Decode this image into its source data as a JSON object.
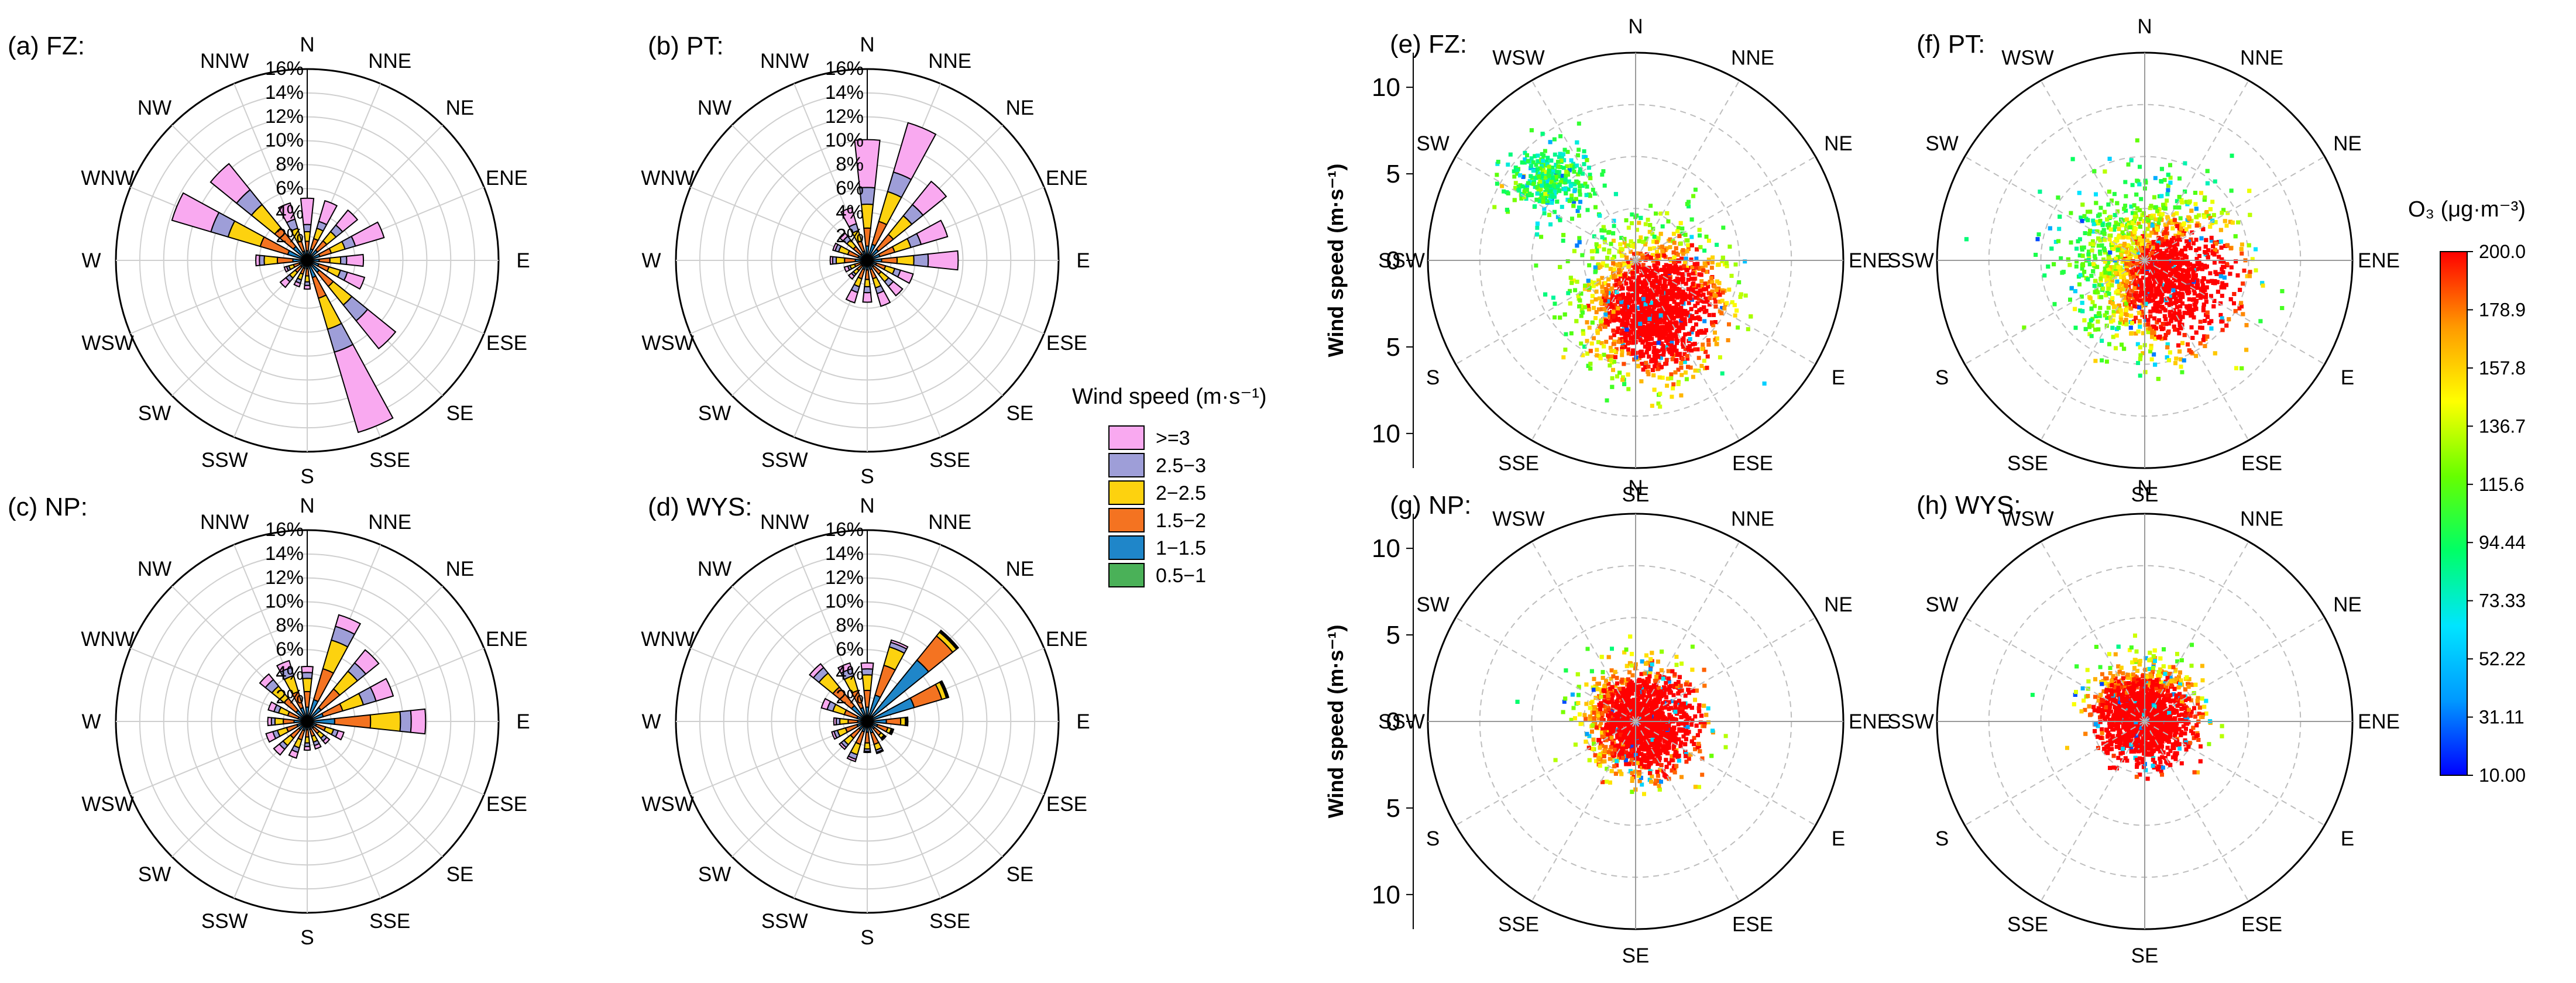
{
  "chart_data": [
    {
      "type": "windrose",
      "panel": "(a) FZ:",
      "directions": [
        "N",
        "NNE",
        "NE",
        "ENE",
        "E",
        "ESE",
        "SE",
        "SSE",
        "S",
        "SSW",
        "SW",
        "WSW",
        "W",
        "WNW",
        "NW",
        "NNW"
      ],
      "radial_ticks": [
        "2%",
        "4%",
        "6%",
        "8%",
        "10%",
        "12%",
        "14%",
        "16%"
      ],
      "rmax": 16,
      "bins": [
        "0.5−1",
        "1−1.5",
        "1.5−2",
        "2−2.5",
        "2.5−3",
        ">=3"
      ],
      "frequency": [
        [
          0.2,
          0.6,
          0.8,
          0.8,
          0.6,
          2.2
        ],
        [
          0.3,
          0.7,
          0.9,
          0.9,
          0.6,
          1.8
        ],
        [
          0.3,
          0.8,
          1.0,
          1.0,
          0.7,
          1.6
        ],
        [
          0.3,
          0.8,
          1.0,
          1.2,
          0.9,
          2.5
        ],
        [
          0.3,
          0.7,
          0.9,
          0.9,
          0.5,
          1.4
        ],
        [
          0.3,
          0.7,
          0.9,
          1.0,
          0.6,
          1.5
        ],
        [
          0.3,
          1.0,
          1.5,
          2.0,
          1.7,
          3.0
        ],
        [
          0.3,
          1.2,
          1.8,
          2.7,
          2.0,
          7.0
        ],
        [
          0.2,
          0.5,
          0.6,
          0.5,
          0.3,
          0.3
        ],
        [
          0.2,
          0.5,
          0.5,
          0.5,
          0.3,
          0.3
        ],
        [
          0.2,
          0.5,
          0.6,
          0.6,
          0.4,
          0.6
        ],
        [
          0.2,
          0.5,
          0.5,
          0.4,
          0.2,
          0.2
        ],
        [
          0.3,
          0.9,
          1.3,
          1.1,
          0.4,
          0.3
        ],
        [
          0.3,
          1.4,
          2.4,
          2.8,
          1.5,
          3.4
        ],
        [
          0.3,
          1.2,
          2.0,
          2.5,
          1.6,
          2.8
        ],
        [
          0.2,
          0.6,
          0.9,
          1.1,
          0.8,
          1.4
        ]
      ]
    },
    {
      "type": "windrose",
      "panel": "(b) PT:",
      "directions": [
        "N",
        "NNE",
        "NE",
        "ENE",
        "E",
        "ESE",
        "SE",
        "SSE",
        "S",
        "SSW",
        "SW",
        "WSW",
        "W",
        "WNW",
        "NW",
        "NNW"
      ],
      "radial_ticks": [
        "2%",
        "4%",
        "6%",
        "8%",
        "10%",
        "12%",
        "14%",
        "16%"
      ],
      "rmax": 16,
      "bins": [
        "0.5−1",
        "1−1.5",
        "1.5−2",
        "2−2.5",
        "2.5−3",
        ">=3"
      ],
      "frequency": [
        [
          0.3,
          0.9,
          1.5,
          2.0,
          1.4,
          4.0
        ],
        [
          0.3,
          1.1,
          2.0,
          2.6,
          1.7,
          4.3
        ],
        [
          0.3,
          0.9,
          1.6,
          2.0,
          1.2,
          2.5
        ],
        [
          0.3,
          0.8,
          1.3,
          1.4,
          0.9,
          2.3
        ],
        [
          0.3,
          0.9,
          1.3,
          1.4,
          1.2,
          2.5
        ],
        [
          0.2,
          0.6,
          0.8,
          0.8,
          0.5,
          1.1
        ],
        [
          0.2,
          0.5,
          0.8,
          0.8,
          0.5,
          1.0
        ],
        [
          0.2,
          0.6,
          0.8,
          0.8,
          0.5,
          1.1
        ],
        [
          0.2,
          0.6,
          0.8,
          0.6,
          0.5,
          0.8
        ],
        [
          0.2,
          0.6,
          0.8,
          0.7,
          0.5,
          0.9
        ],
        [
          0.2,
          0.4,
          0.5,
          0.4,
          0.2,
          0.3
        ],
        [
          0.2,
          0.4,
          0.5,
          0.4,
          0.2,
          0.3
        ],
        [
          0.3,
          0.7,
          0.9,
          0.7,
          0.3,
          0.2
        ],
        [
          0.2,
          0.6,
          0.9,
          0.8,
          0.3,
          0.2
        ],
        [
          0.2,
          0.5,
          0.8,
          0.7,
          0.4,
          0.4
        ],
        [
          0.2,
          0.6,
          0.9,
          0.9,
          0.6,
          1.4
        ]
      ]
    },
    {
      "type": "windrose",
      "panel": "(c) NP:",
      "directions": [
        "N",
        "NNE",
        "NE",
        "ENE",
        "E",
        "ESE",
        "SE",
        "SSE",
        "S",
        "SSW",
        "SW",
        "WSW",
        "W",
        "WNW",
        "NW",
        "NNW"
      ],
      "radial_ticks": [
        "2%",
        "4%",
        "6%",
        "8%",
        "10%",
        "12%",
        "14%",
        "16%"
      ],
      "rmax": 16,
      "bins": [
        "0.5−1",
        "1−1.5",
        "1.5−2",
        "2−2.5",
        "2.5−3",
        ">=3"
      ],
      "frequency": [
        [
          0.3,
          0.9,
          1.3,
          1.1,
          0.5,
          0.5
        ],
        [
          0.3,
          1.6,
          2.7,
          2.5,
          1.2,
          1.0
        ],
        [
          0.3,
          1.2,
          2.0,
          1.9,
          0.9,
          1.4
        ],
        [
          0.3,
          1.1,
          1.7,
          1.8,
          1.1,
          1.5
        ],
        [
          0.3,
          2.0,
          3.0,
          2.5,
          0.9,
          1.2
        ],
        [
          0.2,
          0.6,
          0.8,
          0.7,
          0.4,
          0.5
        ],
        [
          0.2,
          0.5,
          0.6,
          0.5,
          0.3,
          0.3
        ],
        [
          0.2,
          0.5,
          0.6,
          0.5,
          0.3,
          0.3
        ],
        [
          0.2,
          0.5,
          0.6,
          0.5,
          0.3,
          0.3
        ],
        [
          0.2,
          0.6,
          0.8,
          0.7,
          0.4,
          0.5
        ],
        [
          0.2,
          0.7,
          0.9,
          0.8,
          0.4,
          0.6
        ],
        [
          0.2,
          0.7,
          0.9,
          0.8,
          0.4,
          0.6
        ],
        [
          0.3,
          0.8,
          0.9,
          0.7,
          0.3,
          0.3
        ],
        [
          0.2,
          0.6,
          0.9,
          0.8,
          0.4,
          0.5
        ],
        [
          0.3,
          0.9,
          1.3,
          1.3,
          0.7,
          0.6
        ],
        [
          0.3,
          0.9,
          1.4,
          1.4,
          0.7,
          0.6
        ]
      ]
    },
    {
      "type": "windrose",
      "panel": "(d) WYS:",
      "directions": [
        "N",
        "NNE",
        "NE",
        "ENE",
        "E",
        "ESE",
        "SE",
        "SSE",
        "S",
        "SSW",
        "SW",
        "WSW",
        "W",
        "WNW",
        "NW",
        "NNW"
      ],
      "radial_ticks": [
        "2%",
        "4%",
        "6%",
        "8%",
        "10%",
        "12%",
        "14%",
        "16%"
      ],
      "rmax": 16,
      "bins": [
        "0.5−1",
        "1−1.5",
        "1.5−2",
        "2−2.5",
        "2.5−3",
        ">=3"
      ],
      "frequency": [
        [
          0.3,
          0.9,
          1.4,
          1.3,
          0.5,
          0.5
        ],
        [
          0.3,
          2.0,
          2.6,
          1.6,
          0.4,
          0.2
        ],
        [
          0.6,
          6.0,
          2.6,
          0.4,
          0.1,
          0.1
        ],
        [
          0.3,
          3.8,
          2.4,
          0.4,
          0.1,
          0.1
        ],
        [
          0.3,
          1.3,
          1.2,
          0.4,
          0.1,
          0.1
        ],
        [
          0.2,
          0.7,
          0.9,
          0.3,
          0.1,
          0.1
        ],
        [
          0.2,
          0.6,
          0.7,
          0.3,
          0.1,
          0.1
        ],
        [
          0.2,
          0.8,
          1.0,
          0.5,
          0.2,
          0.1
        ],
        [
          0.2,
          0.7,
          0.9,
          0.5,
          0.2,
          0.1
        ],
        [
          0.2,
          0.7,
          1.1,
          0.9,
          0.4,
          0.2
        ],
        [
          0.2,
          0.7,
          0.9,
          0.7,
          0.3,
          0.2
        ],
        [
          0.2,
          0.7,
          1.0,
          0.7,
          0.3,
          0.2
        ],
        [
          0.2,
          0.6,
          0.8,
          0.7,
          0.3,
          0.2
        ],
        [
          0.2,
          0.7,
          1.1,
          1.0,
          0.5,
          0.5
        ],
        [
          0.3,
          1.4,
          2.0,
          1.5,
          0.6,
          0.4
        ],
        [
          0.2,
          1.0,
          1.5,
          1.3,
          0.6,
          0.5
        ]
      ]
    },
    {
      "type": "scatter",
      "subtype": "polar-pollution-rose",
      "panel": "(e) FZ:",
      "ylabel": "Wind speed (m·s⁻¹)",
      "directions": [
        "N",
        "NNE",
        "NE",
        "ENE",
        "E",
        "ESE",
        "SE",
        "SSE",
        "S",
        "SSW",
        "SW",
        "WSW"
      ],
      "y_ticks": [
        "10",
        "5",
        "0",
        "5",
        "10"
      ],
      "rmax": 12,
      "density_center_u_v": [
        1.0,
        -2.5
      ],
      "spread": 4.5,
      "hotspot_u_v": [
        1.5,
        -3.0
      ],
      "max_concentration": 200
    },
    {
      "type": "scatter",
      "subtype": "polar-pollution-rose",
      "panel": "(f) PT:",
      "directions": [
        "N",
        "NNE",
        "NE",
        "ENE",
        "E",
        "ESE",
        "SE",
        "SSE",
        "S",
        "SSW",
        "SW",
        "WSW"
      ],
      "y_ticks": [],
      "rmax": 12,
      "density_center_u_v": [
        0.5,
        -0.5
      ],
      "spread": 5.0,
      "hotspot_u_v": [
        2.5,
        -1.5
      ],
      "max_concentration": 200
    },
    {
      "type": "scatter",
      "subtype": "polar-pollution-rose",
      "panel": "(g) NP:",
      "ylabel": "Wind speed (m·s⁻¹)",
      "directions": [
        "N",
        "NNE",
        "NE",
        "ENE",
        "E",
        "ESE",
        "SE",
        "SSE",
        "S",
        "SSW",
        "SW",
        "WSW"
      ],
      "y_ticks": [
        "10",
        "5",
        "0",
        "5",
        "10"
      ],
      "rmax": 12,
      "density_center_u_v": [
        0.3,
        0.0
      ],
      "spread": 3.3,
      "hotspot_u_v": [
        1.0,
        0.0
      ],
      "max_concentration": 180
    },
    {
      "type": "scatter",
      "subtype": "polar-pollution-rose",
      "panel": "(h) WYS:",
      "directions": [
        "N",
        "NNE",
        "NE",
        "ENE",
        "E",
        "ESE",
        "SE",
        "SSE",
        "S",
        "SSW",
        "SW",
        "WSW"
      ],
      "y_ticks": [],
      "rmax": 12,
      "density_center_u_v": [
        0.0,
        0.5
      ],
      "spread": 3.0,
      "hotspot_u_v": [
        0.0,
        -0.5
      ],
      "max_concentration": 190
    }
  ],
  "legend": {
    "title": "Wind speed (m·s⁻¹)",
    "entries": [
      {
        "label": ">=3",
        "color": "#f9a9f0"
      },
      {
        "label": "2.5−3",
        "color": "#9e9ed8"
      },
      {
        "label": "2−2.5",
        "color": "#fdd20f"
      },
      {
        "label": "1.5−2",
        "color": "#f47321"
      },
      {
        "label": "1−1.5",
        "color": "#1f86c9"
      },
      {
        "label": "0.5−1",
        "color": "#4ab158"
      }
    ]
  },
  "colorbar": {
    "title": "O₃ (μg·m⁻³)",
    "ticks": [
      "200.0",
      "178.9",
      "157.8",
      "136.7",
      "115.6",
      "94.44",
      "73.33",
      "52.22",
      "31.11",
      "10.00"
    ],
    "min": 10,
    "max": 200,
    "colors": [
      "#0000ff",
      "#0099ff",
      "#00e5ff",
      "#00ff66",
      "#66ff00",
      "#ffff00",
      "#ff9900",
      "#ff0000"
    ]
  }
}
